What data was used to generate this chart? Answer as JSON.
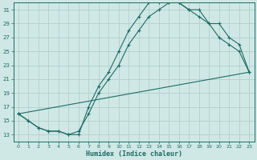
{
  "xlabel": "Humidex (Indice chaleur)",
  "xlim": [
    -0.5,
    23.5
  ],
  "ylim": [
    12,
    32
  ],
  "xticks": [
    0,
    1,
    2,
    3,
    4,
    5,
    6,
    7,
    8,
    9,
    10,
    11,
    12,
    13,
    14,
    15,
    16,
    17,
    18,
    19,
    20,
    21,
    22,
    23
  ],
  "yticks": [
    13,
    15,
    17,
    19,
    21,
    23,
    25,
    27,
    29,
    31
  ],
  "background_color": "#cfe8e5",
  "grid_color": "#b0d0cd",
  "line_color": "#1e6b65",
  "series1_x": [
    0,
    1,
    2,
    3,
    4,
    5,
    6,
    7,
    8,
    9,
    10,
    11,
    12,
    13,
    14,
    15,
    16,
    17,
    18,
    19,
    20,
    21,
    22,
    23
  ],
  "series1_y": [
    16,
    15,
    14,
    13.5,
    13.5,
    13,
    13,
    17,
    20,
    22,
    25,
    28,
    30,
    32,
    32,
    32,
    32,
    31,
    31,
    29,
    27,
    26,
    25,
    22
  ],
  "series2_x": [
    0,
    1,
    2,
    3,
    4,
    5,
    6,
    7,
    8,
    9,
    10,
    11,
    12,
    13,
    14,
    15,
    16,
    17,
    18,
    19,
    20,
    21,
    22,
    23
  ],
  "series2_y": [
    16,
    15,
    14,
    13.5,
    13.5,
    13,
    13.5,
    16,
    19,
    21,
    23,
    26,
    28,
    30,
    31,
    32,
    32,
    31,
    30,
    29,
    29,
    27,
    26,
    22
  ],
  "series3_x": [
    0,
    23
  ],
  "series3_y": [
    16,
    22
  ]
}
